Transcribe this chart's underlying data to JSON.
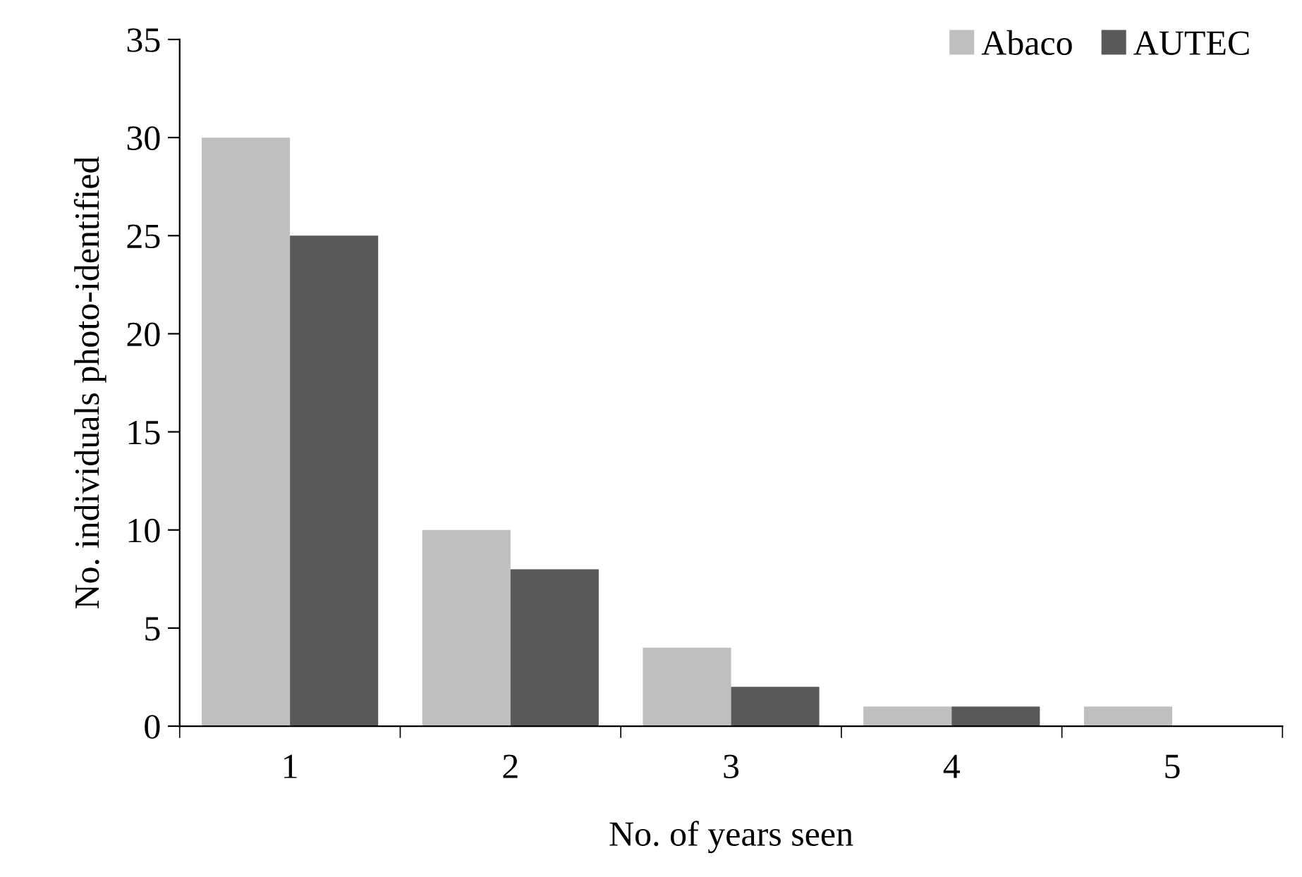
{
  "chart_data": {
    "type": "bar",
    "xlabel": "No. of years seen",
    "ylabel": "No. individuals photo-identified",
    "categories": [
      "1",
      "2",
      "3",
      "4",
      "5"
    ],
    "series": [
      {
        "name": "Abaco",
        "color": "#bfbfbf",
        "values": [
          30,
          10,
          4,
          1,
          1
        ]
      },
      {
        "name": "AUTEC",
        "color": "#595959",
        "values": [
          25,
          8,
          2,
          1,
          0
        ]
      }
    ],
    "ylim": [
      0,
      35
    ],
    "yticks": [
      0,
      5,
      10,
      15,
      20,
      25,
      30,
      35
    ],
    "grid": false,
    "legend": "top right"
  }
}
